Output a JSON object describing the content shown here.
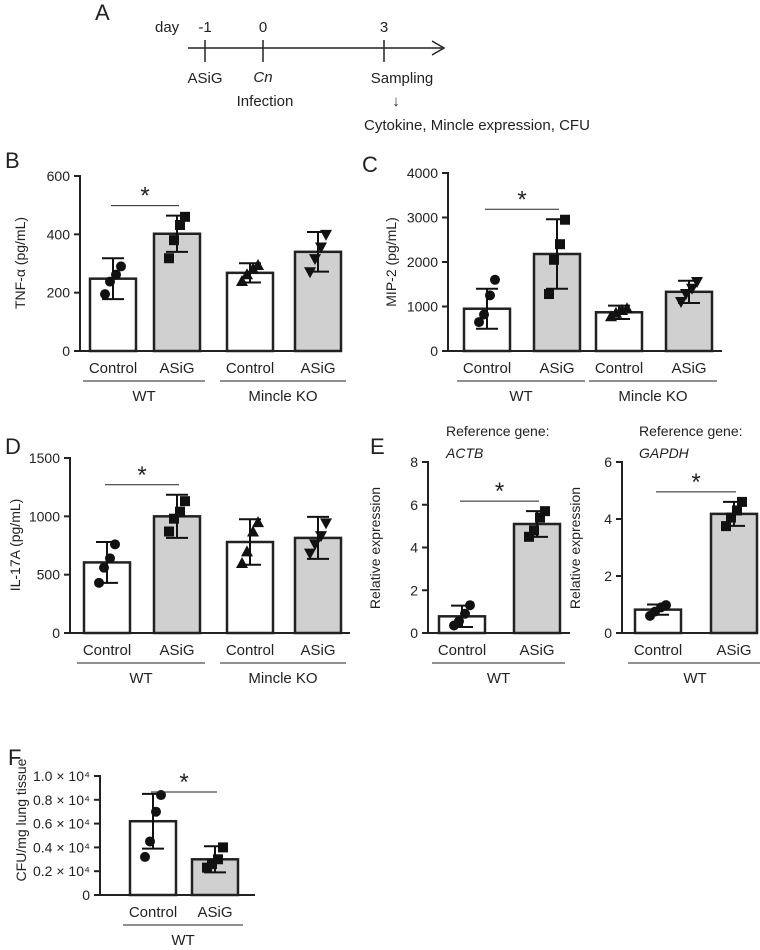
{
  "timeline": {
    "label": "A",
    "day_label": "day",
    "ticks": [
      {
        "day": "-1",
        "below": [
          "ASiG"
        ]
      },
      {
        "day": "0",
        "below": [
          "Cn",
          "Infection"
        ]
      },
      {
        "day": "3",
        "below": [
          "Sampling",
          "↓",
          "Cytokine, Mincle expression, CFU"
        ]
      }
    ]
  },
  "chart_data": [
    {
      "id": "B",
      "type": "bar",
      "ylabel": "TNF-α (pg/mL)",
      "ylim": [
        0,
        600
      ],
      "yticks": [
        0,
        200,
        400,
        600
      ],
      "categories": [
        "Control",
        "ASiG",
        "Control",
        "ASiG"
      ],
      "groups": [
        {
          "label": "WT",
          "span": [
            0,
            1
          ]
        },
        {
          "label": "Mincle KO",
          "span": [
            2,
            3
          ]
        }
      ],
      "fills": [
        "#ffffff",
        "#d0d0d0",
        "#ffffff",
        "#d0d0d0"
      ],
      "markers": [
        "circle",
        "square",
        "triangle",
        "triangle-down"
      ],
      "values": [
        248,
        402,
        268,
        340
      ],
      "errors": [
        70,
        62,
        33,
        68
      ],
      "points": [
        [
          195,
          238,
          262,
          290
        ],
        [
          318,
          380,
          432,
          460
        ],
        [
          240,
          263,
          282,
          295
        ],
        [
          270,
          315,
          355,
          398
        ]
      ],
      "significance": [
        {
          "from": 0,
          "to": 1,
          "label": "*"
        }
      ]
    },
    {
      "id": "C",
      "type": "bar",
      "ylabel": "MIP-2 (pg/mL)",
      "ylim": [
        0,
        4000
      ],
      "yticks": [
        0,
        1000,
        2000,
        3000,
        4000
      ],
      "categories": [
        "Control",
        "ASiG",
        "Control",
        "ASiG"
      ],
      "groups": [
        {
          "label": "WT",
          "span": [
            0,
            1
          ]
        },
        {
          "label": "Mincle KO",
          "span": [
            2,
            3
          ]
        }
      ],
      "fills": [
        "#ffffff",
        "#d0d0d0",
        "#ffffff",
        "#d0d0d0"
      ],
      "markers": [
        "circle",
        "square",
        "triangle",
        "triangle-down"
      ],
      "values": [
        950,
        2180,
        870,
        1330
      ],
      "errors": [
        450,
        780,
        150,
        250
      ],
      "points": [
        [
          650,
          820,
          1250,
          1600
        ],
        [
          1280,
          2050,
          2400,
          2950
        ],
        [
          780,
          860,
          920,
          960
        ],
        [
          1100,
          1280,
          1400,
          1550
        ]
      ],
      "significance": [
        {
          "from": 0,
          "to": 1,
          "label": "*"
        }
      ]
    },
    {
      "id": "D",
      "type": "bar",
      "ylabel": "IL-17A (pg/mL)",
      "ylim": [
        0,
        1500
      ],
      "yticks": [
        0,
        500,
        1000,
        1500
      ],
      "categories": [
        "Control",
        "ASiG",
        "Control",
        "ASiG"
      ],
      "groups": [
        {
          "label": "WT",
          "span": [
            0,
            1
          ]
        },
        {
          "label": "Mincle KO",
          "span": [
            2,
            3
          ]
        }
      ],
      "fills": [
        "#ffffff",
        "#d0d0d0",
        "#ffffff",
        "#d0d0d0"
      ],
      "markers": [
        "circle",
        "square",
        "triangle",
        "triangle-down"
      ],
      "values": [
        605,
        1000,
        780,
        815
      ],
      "errors": [
        175,
        185,
        195,
        180
      ],
      "points": [
        [
          430,
          560,
          640,
          760
        ],
        [
          870,
          980,
          1040,
          1130
        ],
        [
          600,
          700,
          870,
          950
        ],
        [
          680,
          760,
          830,
          940
        ]
      ],
      "significance": [
        {
          "from": 0,
          "to": 1,
          "label": "*"
        }
      ]
    },
    {
      "id": "E1",
      "type": "bar",
      "ylabel": "Relative expression",
      "title_lines": [
        "Reference gene:",
        "ACTB"
      ],
      "ylim": [
        0,
        8
      ],
      "yticks": [
        0,
        2,
        4,
        6,
        8
      ],
      "categories": [
        "Control",
        "ASiG"
      ],
      "groups": [
        {
          "label": "WT",
          "span": [
            0,
            1
          ]
        }
      ],
      "fills": [
        "#ffffff",
        "#d0d0d0"
      ],
      "markers": [
        "circle",
        "square"
      ],
      "values": [
        0.78,
        5.1
      ],
      "errors": [
        0.5,
        0.6
      ],
      "points": [
        [
          0.35,
          0.55,
          0.9,
          1.3
        ],
        [
          4.5,
          4.8,
          5.4,
          5.7
        ]
      ],
      "significance": [
        {
          "from": 0,
          "to": 1,
          "label": "*"
        }
      ]
    },
    {
      "id": "E2",
      "type": "bar",
      "ylabel": "Relative expression",
      "title_lines": [
        "Reference gene:",
        "GAPDH"
      ],
      "ylim": [
        0,
        6
      ],
      "yticks": [
        0,
        2,
        4,
        6
      ],
      "categories": [
        "Control",
        "ASiG"
      ],
      "groups": [
        {
          "label": "WT",
          "span": [
            0,
            1
          ]
        }
      ],
      "fills": [
        "#ffffff",
        "#d0d0d0"
      ],
      "markers": [
        "circle",
        "square"
      ],
      "values": [
        0.82,
        4.18
      ],
      "errors": [
        0.18,
        0.42
      ],
      "points": [
        [
          0.6,
          0.75,
          0.9,
          0.98
        ],
        [
          3.75,
          4.05,
          4.3,
          4.6
        ]
      ],
      "significance": [
        {
          "from": 0,
          "to": 1,
          "label": "*"
        }
      ]
    },
    {
      "id": "F",
      "type": "bar",
      "ylabel": "CFU/mg lung tissue",
      "ylim": [
        0,
        1.0
      ],
      "yticks": [
        0,
        0.2,
        0.4,
        0.6,
        0.8,
        1.0
      ],
      "ytick_labels": [
        "0",
        "0.2 × 10⁴",
        "0.4 × 10⁴",
        "0.6 × 10⁴",
        "0.8 × 10⁴",
        "1.0 × 10⁴"
      ],
      "categories": [
        "Control",
        "ASiG"
      ],
      "groups": [
        {
          "label": "WT",
          "span": [
            0,
            1
          ]
        }
      ],
      "fills": [
        "#ffffff",
        "#d0d0d0"
      ],
      "markers": [
        "circle",
        "square"
      ],
      "values": [
        0.62,
        0.3
      ],
      "errors": [
        0.23,
        0.11
      ],
      "points": [
        [
          0.32,
          0.45,
          0.7,
          0.84
        ],
        [
          0.23,
          0.26,
          0.3,
          0.4
        ]
      ],
      "significance": [
        {
          "from": 0,
          "to": 1,
          "label": "*"
        }
      ]
    }
  ]
}
